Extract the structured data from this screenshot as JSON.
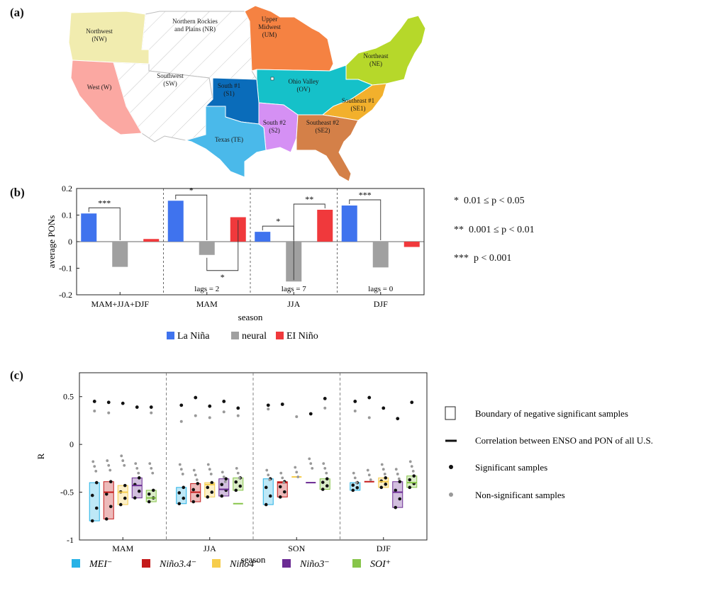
{
  "panel_labels": {
    "a": "(a)",
    "b": "(b)",
    "c": "(c)"
  },
  "colors": {
    "la_nina": "#3f73ee",
    "neutral": "#a0a0a0",
    "el_nino": "#f0393c",
    "mei": "#27b2e6",
    "nino34": "#c41a1a",
    "nino4": "#f6cd4d",
    "nino3": "#6b2b93",
    "soi": "#87c54a",
    "nw": "#f1ecaf",
    "w": "#fba8a2",
    "um": "#f58242",
    "ov": "#15c1c9",
    "ne": "#b6d82a",
    "s1": "#0a6cba",
    "s2": "#d590f4",
    "te": "#4ab9ea",
    "se1": "#f2b02c",
    "se2": "#d48048"
  },
  "map": {
    "regions": [
      {
        "key": "nw",
        "line1": "Northwest",
        "line2": "(NW)"
      },
      {
        "key": "nr",
        "line1": "Northern Rockies",
        "line2": "and Plains (NR)"
      },
      {
        "key": "um",
        "line1": "Upper",
        "line2": "Midwest",
        "line3": "(UM)"
      },
      {
        "key": "ne",
        "line1": "Northeast",
        "line2": "(NE)"
      },
      {
        "key": "w",
        "line1": "West (W)"
      },
      {
        "key": "sw",
        "line1": "Southwest",
        "line2": "(SW)"
      },
      {
        "key": "s1",
        "line1": "South #1",
        "line2": "(S1)"
      },
      {
        "key": "ov",
        "line1": "Ohio Valley",
        "line2": "(OV)"
      },
      {
        "key": "se1",
        "line1": "Southeast #1",
        "line2": "(SE1)"
      },
      {
        "key": "s2",
        "line1": "South #2",
        "line2": "(S2)"
      },
      {
        "key": "se2",
        "line1": "Southeast #2",
        "line2": "(SE2)"
      },
      {
        "key": "te",
        "line1": "Texas (TE)"
      }
    ]
  },
  "chart_data": [
    {
      "type": "bar",
      "panel": "(b)",
      "xlabel": "season",
      "ylabel": "average PONs",
      "ylim": [
        -0.2,
        0.2
      ],
      "yticks": [
        "-0.2",
        "-0.1",
        "0",
        "0.1",
        "0.2"
      ],
      "categories": [
        "MAM+JJA+DJF",
        "MAM",
        "JJA",
        "DJF"
      ],
      "series": [
        {
          "name": "La Niña",
          "legend": "La Niña",
          "values": [
            0.106,
            0.154,
            0.037,
            0.136
          ]
        },
        {
          "name": "neutral",
          "legend": "neural",
          "values": [
            -0.095,
            -0.05,
            -0.15,
            -0.097
          ]
        },
        {
          "name": "El Niño",
          "legend": "EI Niño",
          "values": [
            0.01,
            0.092,
            0.12,
            -0.02
          ]
        }
      ],
      "lags": [
        "",
        "lags = 2",
        "lags = 7",
        "lags = 0"
      ],
      "significance_brackets": [
        {
          "category": 0,
          "from": "La Niña",
          "to": "neutral",
          "stars": "***"
        },
        {
          "category": 1,
          "from": "La Niña",
          "to": "neutral",
          "stars": "*"
        },
        {
          "category": 1,
          "from": "neutral",
          "to": "El Niño",
          "stars": "*",
          "below": true
        },
        {
          "category": 2,
          "from": "La Niña",
          "to": "neutral",
          "stars": "*"
        },
        {
          "category": 2,
          "from": "neutral",
          "to": "El Niño",
          "stars": "**"
        },
        {
          "category": 3,
          "from": "La Niña",
          "to": "neutral",
          "stars": "***"
        }
      ],
      "p_legend": [
        {
          "stars": "*",
          "text": "0.01 ≤ p < 0.05"
        },
        {
          "stars": "**",
          "text": "0.001 ≤ p < 0.01"
        },
        {
          "stars": "***",
          "text": "p < 0.001"
        }
      ]
    },
    {
      "type": "scatter",
      "panel": "(c)",
      "xlabel": "season",
      "ylabel": "R",
      "ylim": [
        -1,
        0.75
      ],
      "yticks": [
        "-1",
        "-0.5",
        "0",
        "0.5"
      ],
      "categories": [
        "MAM",
        "JJA",
        "SON",
        "DJF"
      ],
      "series": [
        {
          "name": "MEI",
          "legend": "MEI⁻",
          "boxes": [
            [
              -0.8,
              -0.4
            ],
            [
              -0.62,
              -0.45
            ],
            [
              -0.63,
              -0.36
            ],
            [
              -0.48,
              -0.4
            ]
          ],
          "overall": [
            null,
            null,
            null,
            null
          ],
          "top_sig": [
            0.45,
            0.41,
            0.41,
            0.45
          ],
          "top_nonsig": [
            0.35,
            0.24,
            0.37,
            0.35
          ],
          "mid_nonsig": [
            -0.18,
            -0.21,
            -0.27,
            -0.3
          ]
        },
        {
          "name": "Niño3.4",
          "legend": "Niño3.4⁻",
          "boxes": [
            [
              -0.78,
              -0.39
            ],
            [
              -0.6,
              -0.41
            ],
            [
              -0.55,
              -0.39
            ],
            null
          ],
          "overall": [
            -0.5,
            -0.5,
            -0.4,
            -0.39
          ],
          "top_sig": [
            0.44,
            0.49,
            0.42,
            0.49
          ],
          "top_nonsig": [
            0.33,
            0.3,
            null,
            0.28
          ],
          "mid_nonsig": [
            -0.17,
            -0.27,
            -0.3,
            -0.27
          ]
        },
        {
          "name": "Niño4",
          "legend": "Niño4⁻",
          "boxes": [
            [
              -0.63,
              -0.43
            ],
            [
              -0.55,
              -0.4
            ],
            null,
            [
              -0.45,
              -0.35
            ]
          ],
          "overall": [
            -0.5,
            -0.42,
            -0.34,
            -0.39
          ],
          "top_sig": [
            0.43,
            0.4,
            null,
            0.38
          ],
          "top_nonsig": [
            null,
            0.28,
            0.29,
            null
          ],
          "mid_nonsig": [
            -0.12,
            -0.21,
            -0.24,
            -0.21
          ]
        },
        {
          "name": "Niño3",
          "legend": "Niño3⁻",
          "boxes": [
            [
              -0.56,
              -0.35
            ],
            [
              -0.54,
              -0.36
            ],
            null,
            [
              -0.66,
              -0.39
            ]
          ],
          "overall": [
            -0.43,
            -0.47,
            -0.4,
            -0.5
          ],
          "top_sig": [
            0.39,
            0.45,
            0.32,
            0.27
          ],
          "top_nonsig": [
            null,
            0.34,
            null,
            null
          ],
          "mid_nonsig": [
            -0.2,
            -0.29,
            -0.15,
            -0.26
          ]
        },
        {
          "name": "SOI",
          "legend": "SOI⁺",
          "boxes": [
            [
              -0.6,
              -0.48
            ],
            [
              -0.48,
              -0.35
            ],
            [
              -0.47,
              -0.36
            ],
            [
              -0.45,
              -0.33
            ]
          ],
          "overall": [
            -0.56,
            -0.62,
            null,
            -0.4
          ],
          "top_sig": [
            0.39,
            0.38,
            0.48,
            0.44
          ],
          "top_nonsig": [
            0.33,
            0.3,
            0.38,
            null
          ],
          "mid_nonsig": [
            -0.2,
            -0.25,
            -0.2,
            -0.18
          ]
        }
      ],
      "legend_items": [
        {
          "key": "box",
          "text": "Boundary of negative significant samples"
        },
        {
          "key": "line",
          "text": "Correlation between ENSO and PON of all U.S."
        },
        {
          "key": "sig",
          "text": "Significant samples"
        },
        {
          "key": "nonsig",
          "text": "Non-significant samples"
        }
      ]
    }
  ]
}
